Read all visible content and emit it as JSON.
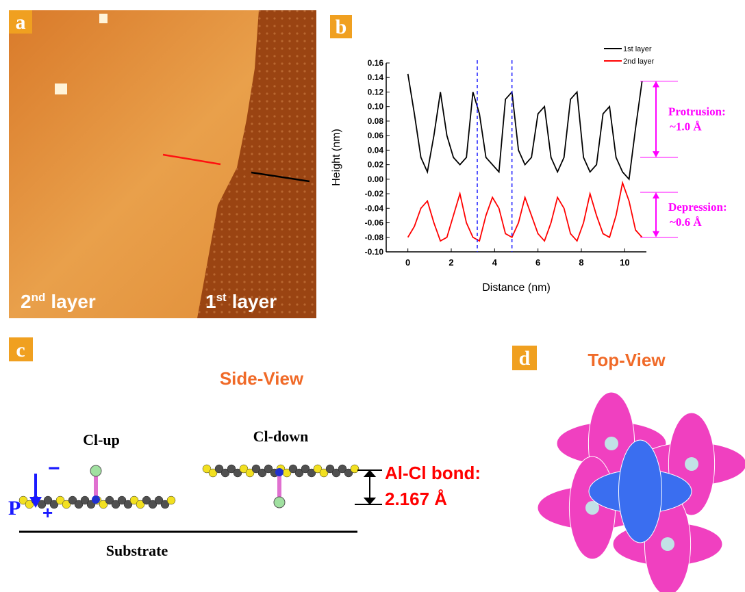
{
  "panel_a": {
    "label": "a",
    "left_layer": {
      "number": "2",
      "suffix": "nd",
      "word": "layer"
    },
    "right_layer": {
      "number": "1",
      "suffix": "st",
      "word": "layer"
    }
  },
  "panel_b": {
    "label": "b"
  },
  "chart_data": {
    "type": "line",
    "xlabel": "Distance (nm)",
    "ylabel": "Height (nm)",
    "x": [
      0,
      0.3,
      0.6,
      0.9,
      1.2,
      1.5,
      1.8,
      2.1,
      2.4,
      2.7,
      3.0,
      3.3,
      3.6,
      3.9,
      4.2,
      4.5,
      4.8,
      5.1,
      5.4,
      5.7,
      6.0,
      6.3,
      6.6,
      6.9,
      7.2,
      7.5,
      7.8,
      8.1,
      8.4,
      8.7,
      9.0,
      9.3,
      9.6,
      9.9,
      10.2,
      10.5,
      10.8
    ],
    "series": [
      {
        "name": "1st layer",
        "color": "#000000",
        "values": [
          0.145,
          0.09,
          0.03,
          0.01,
          0.06,
          0.12,
          0.06,
          0.03,
          0.02,
          0.03,
          0.12,
          0.09,
          0.03,
          0.02,
          0.01,
          0.11,
          0.12,
          0.04,
          0.02,
          0.03,
          0.09,
          0.1,
          0.03,
          0.01,
          0.03,
          0.11,
          0.12,
          0.03,
          0.01,
          0.02,
          0.09,
          0.1,
          0.03,
          0.01,
          0.0,
          0.07,
          0.135
        ]
      },
      {
        "name": "2nd layer",
        "color": "#ff0000",
        "values": [
          -0.08,
          -0.065,
          -0.04,
          -0.03,
          -0.06,
          -0.085,
          -0.08,
          -0.05,
          -0.02,
          -0.06,
          -0.08,
          -0.085,
          -0.05,
          -0.025,
          -0.04,
          -0.075,
          -0.08,
          -0.06,
          -0.025,
          -0.05,
          -0.075,
          -0.085,
          -0.06,
          -0.025,
          -0.04,
          -0.075,
          -0.085,
          -0.06,
          -0.02,
          -0.05,
          -0.075,
          -0.08,
          -0.05,
          -0.005,
          -0.03,
          -0.07,
          -0.08
        ]
      }
    ],
    "xlim": [
      -1,
      11
    ],
    "ylim": [
      -0.1,
      0.16
    ],
    "xticks": [
      0,
      2,
      4,
      6,
      8,
      10
    ],
    "yticks": [
      {
        "value": -0.1,
        "label": "-0.10"
      },
      {
        "value": -0.08,
        "label": "-0.08"
      },
      {
        "value": -0.06,
        "label": "-0.06"
      },
      {
        "value": -0.04,
        "label": "-0.04"
      },
      {
        "value": -0.02,
        "label": "-0.02"
      },
      {
        "value": 0.0,
        "label": "0.00"
      },
      {
        "value": 0.02,
        "label": "0.02"
      },
      {
        "value": 0.04,
        "label": "0.04"
      },
      {
        "value": 0.06,
        "label": "0.06"
      },
      {
        "value": 0.08,
        "label": "0.08"
      },
      {
        "value": 0.1,
        "label": "0.10"
      },
      {
        "value": 0.12,
        "label": "0.12"
      },
      {
        "value": 0.14,
        "label": "0.14"
      },
      {
        "value": 0.16,
        "label": "0.16"
      }
    ],
    "guide_lines": [
      3.2,
      4.8
    ],
    "guide_color": "#1a1aff",
    "annotations": [
      {
        "lines": [
          "Protrusion:",
          "~1.0 Å"
        ],
        "range": [
          0.03,
          0.135
        ],
        "color": "#ff00ff"
      },
      {
        "lines": [
          "Depression:",
          "~0.6 Å"
        ],
        "range": [
          -0.08,
          -0.018
        ],
        "color": "#ff00ff"
      }
    ]
  },
  "panel_c": {
    "label": "c",
    "title": "Side-View",
    "left_molecule": "Cl-up",
    "right_molecule": "Cl-down",
    "polarization": "P",
    "minus": "−",
    "plus": "+",
    "bond_lines": [
      "Al-Cl bond:",
      "2.167 Å"
    ],
    "substrate": "Substrate"
  },
  "panel_d": {
    "label": "d",
    "title": "Top-View"
  }
}
